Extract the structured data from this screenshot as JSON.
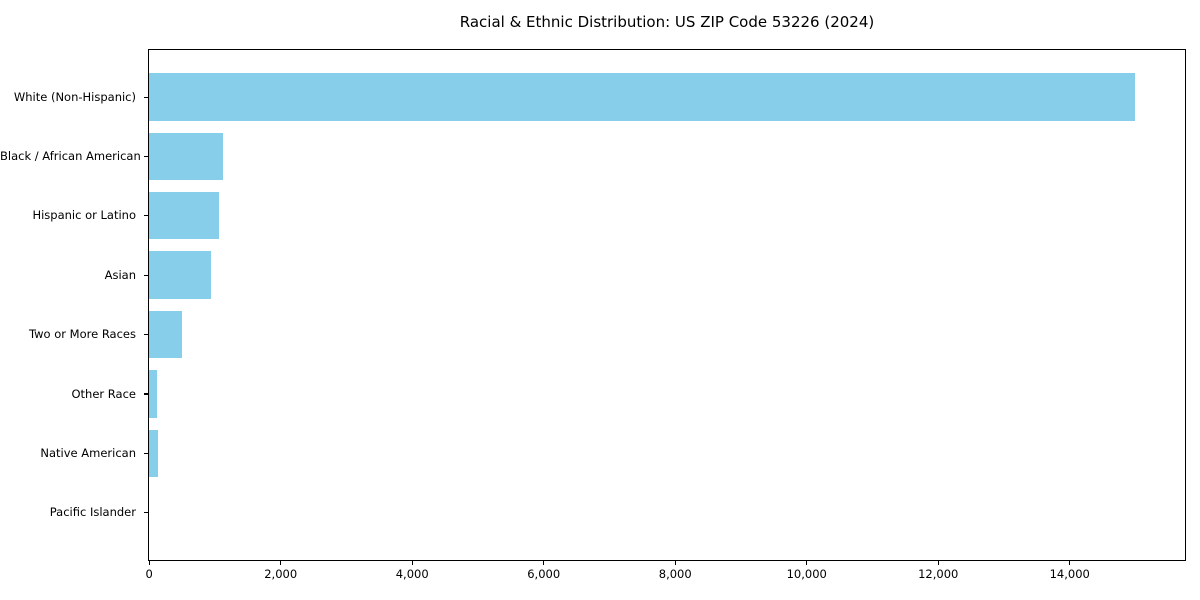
{
  "chart_data": {
    "type": "bar",
    "orientation": "horizontal",
    "title": "Racial & Ethnic Distribution: US ZIP Code 53226 (2024)",
    "categories": [
      "White (Non-Hispanic)",
      "Black / African American",
      "Hispanic or Latino",
      "Asian",
      "Two or More Races",
      "Other Race",
      "Native American",
      "Pacific Islander"
    ],
    "values": [
      15000,
      1130,
      1070,
      945,
      495,
      125,
      135,
      0
    ],
    "xlabel": "",
    "ylabel": "",
    "xlim": [
      0,
      15750
    ],
    "xticks": [
      0,
      2000,
      4000,
      6000,
      8000,
      10000,
      12000,
      14000
    ],
    "xtick_labels": [
      "0",
      "2,000",
      "4,000",
      "6,000",
      "8,000",
      "10,000",
      "12,000",
      "14,000"
    ],
    "bar_color": "#87CEEB",
    "frame_color": "#000000",
    "background": "#FFFFFF",
    "grid": false,
    "legend": false
  }
}
